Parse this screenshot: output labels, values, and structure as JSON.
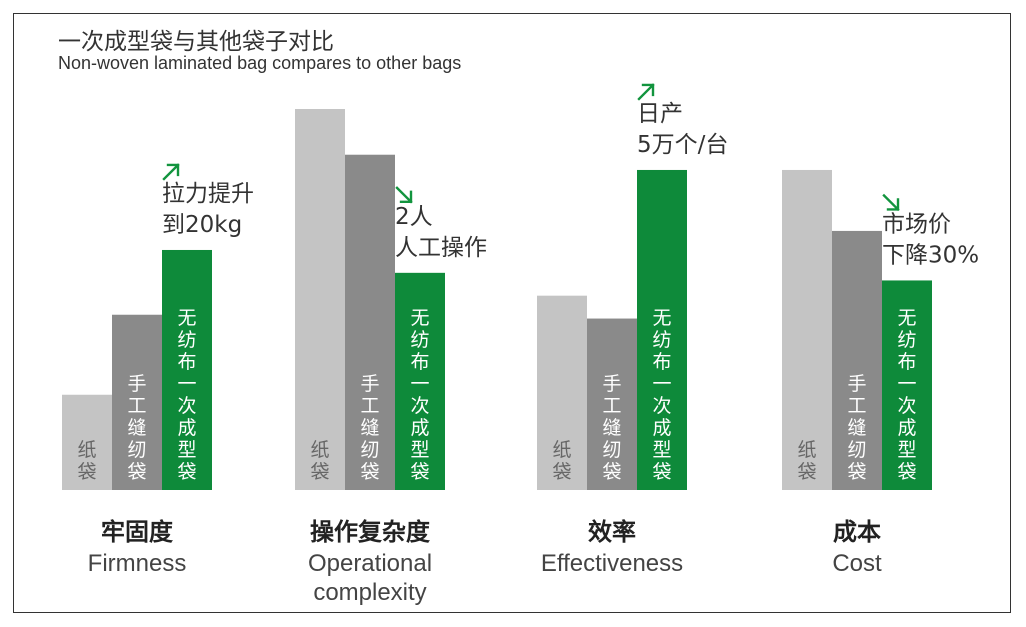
{
  "title": "一次成型袋与其他袋子对比",
  "subtitle": "Non-woven laminated bag compares to other bags",
  "colors": {
    "paper": "#c4c4c4",
    "sewn": "#8a8a8a",
    "nonwoven": "#0e8a3a",
    "arrow": "#12943e",
    "text": "#333333"
  },
  "chart_data": {
    "type": "bar",
    "series": [
      {
        "name": "纸袋",
        "values": [
          25,
          100,
          51,
          84
        ]
      },
      {
        "name": "手工缝纫袋",
        "values": [
          46,
          88,
          45,
          68
        ]
      },
      {
        "name": "无纺布一次成型袋",
        "values": [
          63,
          57,
          84,
          55
        ]
      }
    ],
    "groups": [
      {
        "label_cn": "牢固度",
        "label_en": [
          "Firmness"
        ],
        "annotation": [
          "拉力提升",
          "到20kg"
        ],
        "arrow": "up-right-icon"
      },
      {
        "label_cn": "操作复杂度",
        "label_en": [
          "Operational",
          "complexity"
        ],
        "annotation": [
          "2人",
          "人工操作"
        ],
        "arrow": "down-right-icon"
      },
      {
        "label_cn": "效率",
        "label_en": [
          "Effectiveness"
        ],
        "annotation": [
          "日产",
          "5万个/台"
        ],
        "arrow": "up-right-icon"
      },
      {
        "label_cn": "成本",
        "label_en": [
          "Cost"
        ],
        "annotation": [
          "市场价",
          "下降30%"
        ],
        "arrow": "down-right-icon"
      }
    ],
    "ylim": [
      0,
      100
    ],
    "grid": false,
    "legend": "none"
  }
}
